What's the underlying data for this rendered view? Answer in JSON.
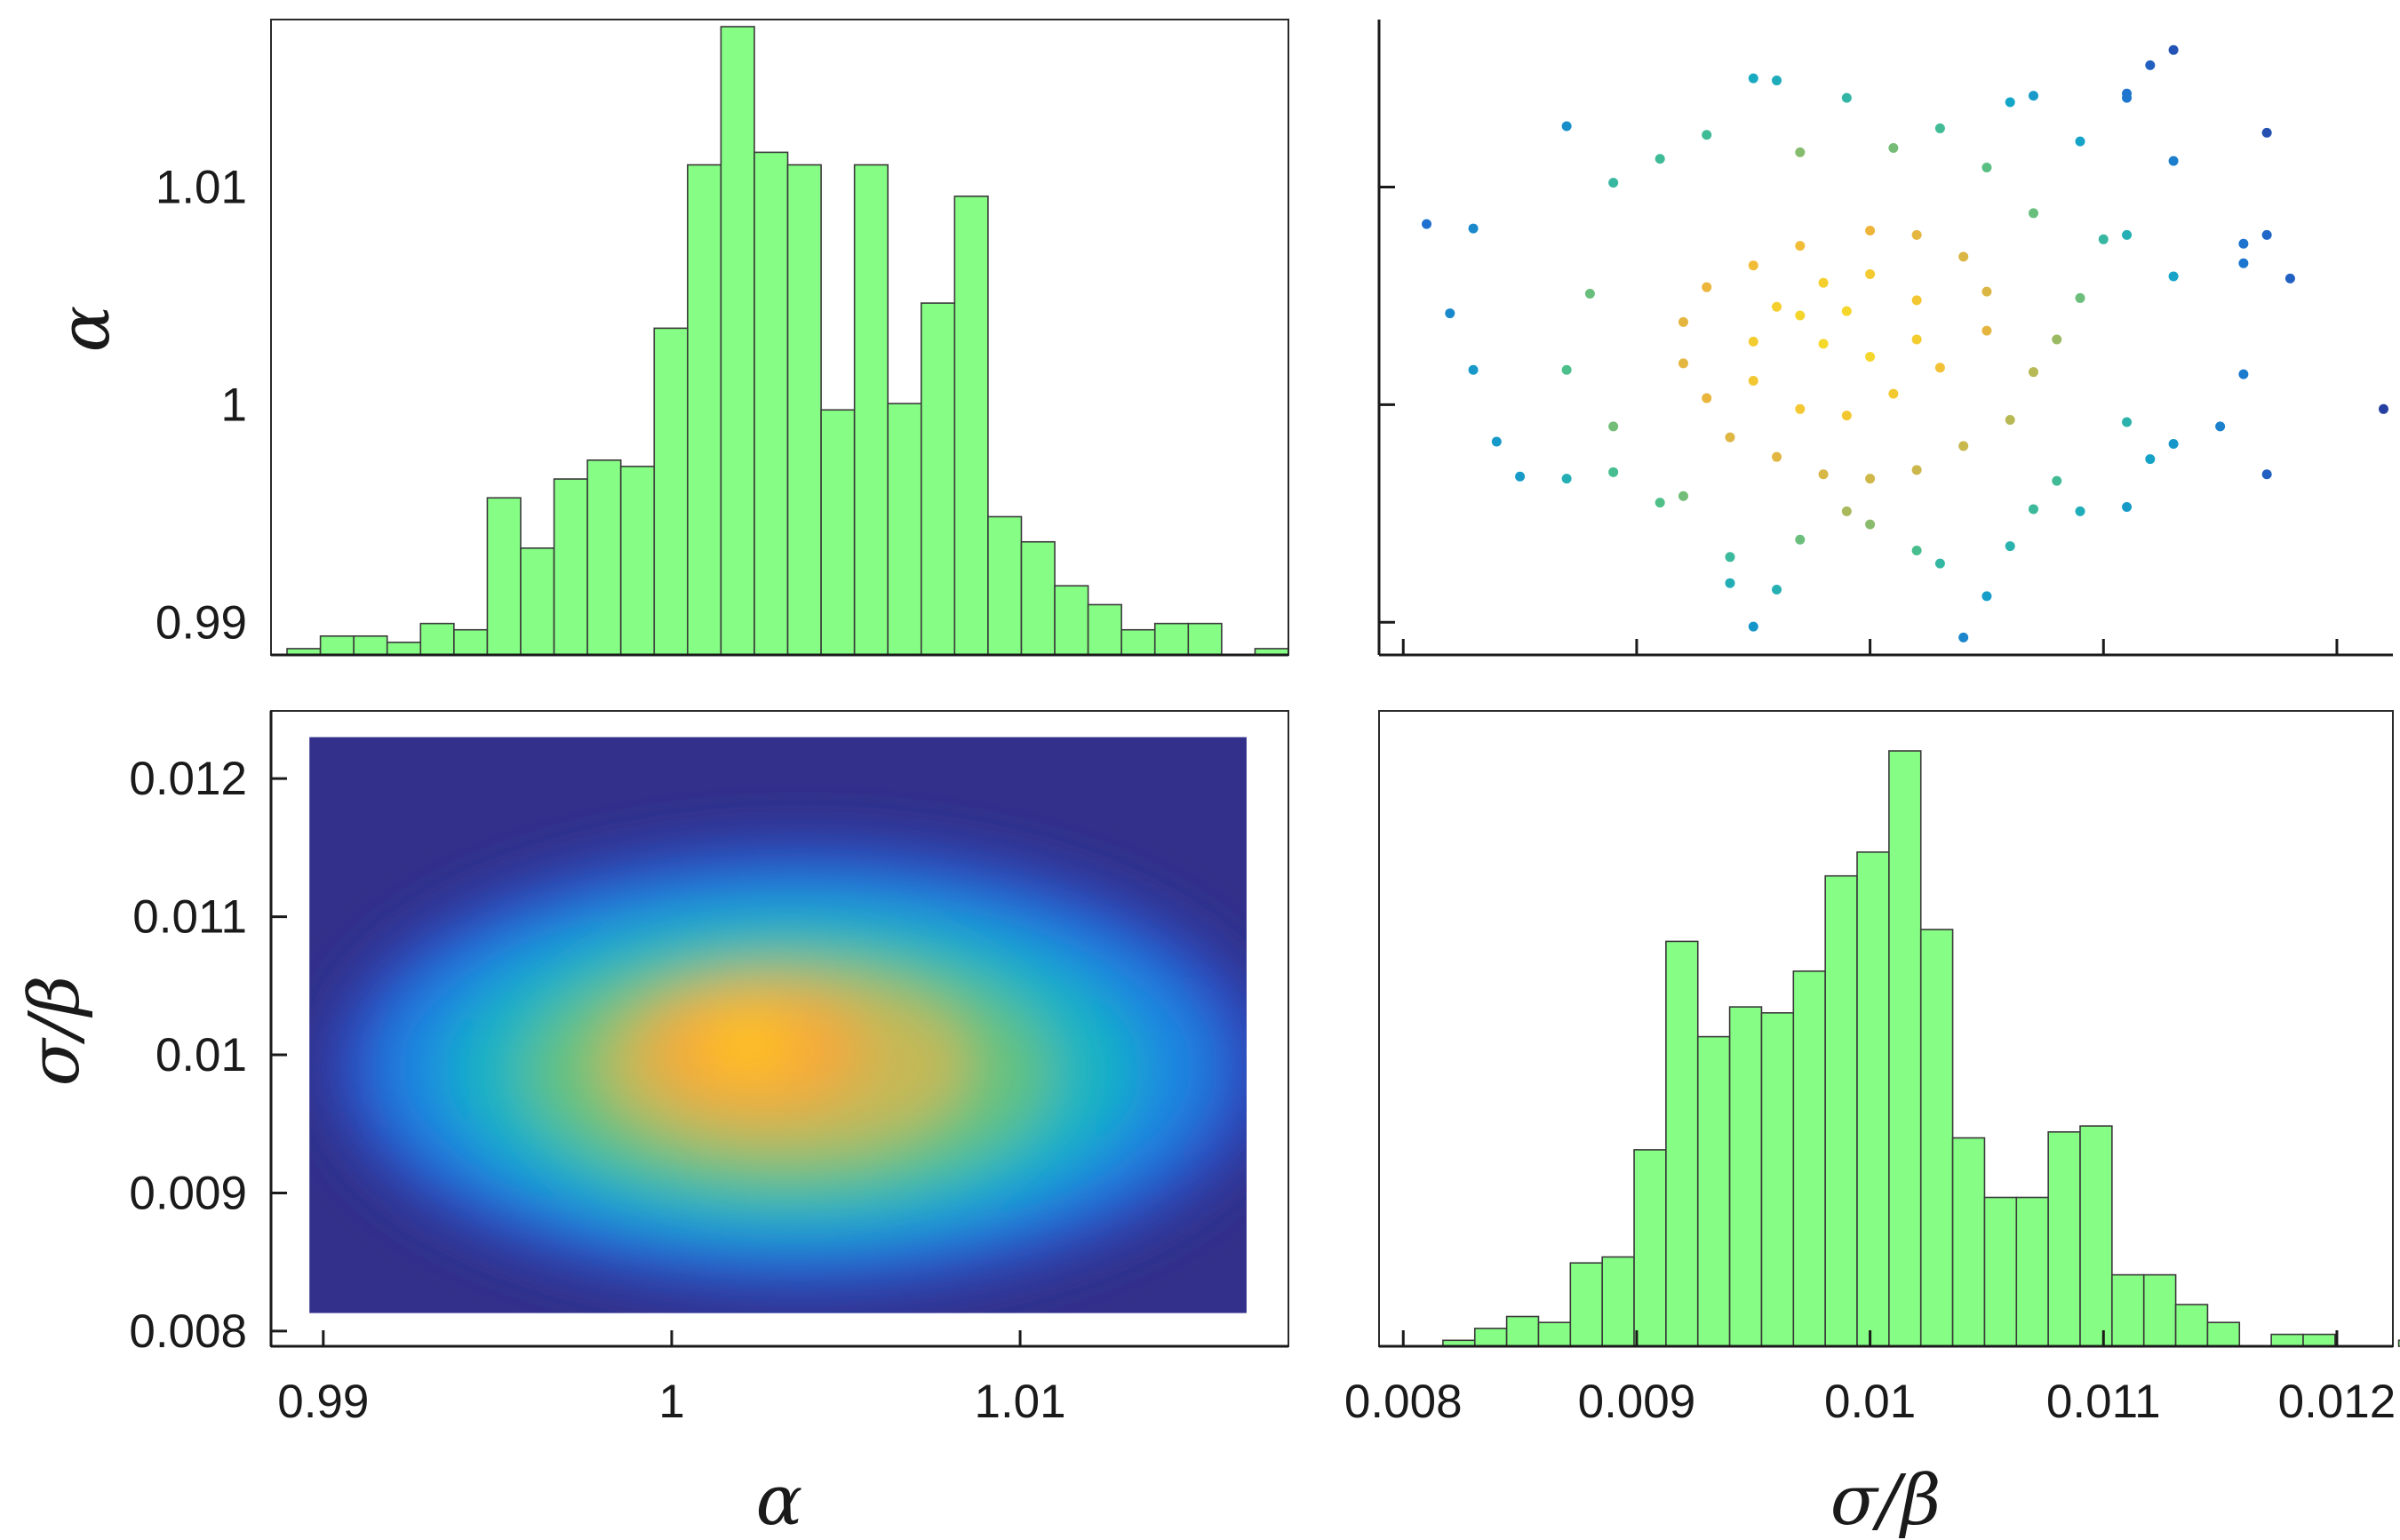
{
  "chart_data": [
    {
      "type": "bar",
      "panel": "top-left",
      "xlim": [
        0.9885,
        1.0177
      ],
      "ylim_ticks": [
        "0.99",
        "1",
        "1.01"
      ],
      "ylabel": "α",
      "bin_edges_start": 0.98896,
      "bin_width": 0.000958,
      "counts": [
        1,
        3,
        3,
        2,
        5,
        4,
        25,
        17,
        28,
        31,
        30,
        52,
        78,
        100,
        80,
        78,
        39,
        78,
        40,
        56,
        73,
        22,
        18,
        11,
        8,
        4,
        5,
        5,
        0,
        1
      ],
      "y_tick_labels": [
        "0.99",
        "1",
        "1.01"
      ],
      "y_tick_values": [
        0.99,
        1.0,
        1.01
      ],
      "y_tick_range": [
        0.9888,
        1.0155
      ]
    },
    {
      "type": "scatter",
      "panel": "top-right",
      "xlim": [
        0.00798,
        0.01224
      ],
      "ylim": [
        0.9885,
        1.0177
      ],
      "x_ticks": [
        0.008,
        0.009,
        0.01,
        0.011,
        0.012
      ],
      "y_ticks": [
        0.99,
        1.0,
        1.01
      ],
      "colormap": [
        "#2a2a8c",
        "#1f6fd0",
        "#14a8c6",
        "#4cc08a",
        "#b3b957",
        "#f0b53a",
        "#f5d92a"
      ],
      "points": [
        [
          0.0113,
          1.0163
        ],
        [
          0.0112,
          1.0156
        ],
        [
          0.0111,
          1.0143
        ],
        [
          0.0106,
          1.0139
        ],
        [
          0.0107,
          1.0142
        ],
        [
          0.0117,
          1.0125
        ],
        [
          0.0109,
          1.0121
        ],
        [
          0.0116,
          1.0065
        ],
        [
          0.0122,
          0.9998
        ],
        [
          0.0113,
          1.0112
        ],
        [
          0.0111,
          1.0141
        ],
        [
          0.0099,
          1.0141
        ],
        [
          0.0096,
          1.0149
        ],
        [
          0.0095,
          1.015
        ],
        [
          0.0087,
          1.0128
        ],
        [
          0.0081,
          1.0083
        ],
        [
          0.0083,
          1.0081
        ],
        [
          0.0082,
          1.0042
        ],
        [
          0.0083,
          1.0016
        ],
        [
          0.0084,
          0.9983
        ],
        [
          0.0085,
          0.9967
        ],
        [
          0.0087,
          0.9966
        ],
        [
          0.0092,
          0.9958
        ],
        [
          0.0094,
          0.993
        ],
        [
          0.0096,
          0.9915
        ],
        [
          0.0094,
          0.9918
        ],
        [
          0.0095,
          0.9898
        ],
        [
          0.0104,
          0.9893
        ],
        [
          0.0105,
          0.9912
        ],
        [
          0.0109,
          0.9951
        ],
        [
          0.0111,
          0.9953
        ],
        [
          0.0113,
          0.9982
        ],
        [
          0.0115,
          0.999
        ],
        [
          0.0113,
          1.0059
        ],
        [
          0.0111,
          1.0078
        ],
        [
          0.0116,
          1.0074
        ],
        [
          0.0117,
          1.0078
        ],
        [
          0.0118,
          1.0058
        ],
        [
          0.0116,
          1.0014
        ],
        [
          0.0117,
          0.9968
        ],
        [
          0.0112,
          0.9975
        ],
        [
          0.0111,
          0.9992
        ],
        [
          0.0108,
          0.9965
        ],
        [
          0.0107,
          0.9952
        ],
        [
          0.0106,
          0.9935
        ],
        [
          0.0103,
          0.9927
        ],
        [
          0.0102,
          0.9933
        ],
        [
          0.01,
          0.9945
        ],
        [
          0.0099,
          0.9951
        ],
        [
          0.0097,
          0.9938
        ],
        [
          0.0091,
          0.9955
        ],
        [
          0.0089,
          0.9969
        ],
        [
          0.0089,
          0.999
        ],
        [
          0.0087,
          1.0016
        ],
        [
          0.0088,
          1.0051
        ],
        [
          0.0089,
          1.0102
        ],
        [
          0.0091,
          1.0113
        ],
        [
          0.0093,
          1.0124
        ],
        [
          0.0097,
          1.0116
        ],
        [
          0.0101,
          1.0118
        ],
        [
          0.0103,
          1.0127
        ],
        [
          0.0105,
          1.0109
        ],
        [
          0.0107,
          1.0088
        ],
        [
          0.011,
          1.0076
        ],
        [
          0.0109,
          1.0049
        ],
        [
          0.0108,
          1.003
        ],
        [
          0.0107,
          1.0015
        ],
        [
          0.0106,
          0.9993
        ],
        [
          0.0104,
          0.9981
        ],
        [
          0.0102,
          0.997
        ],
        [
          0.01,
          0.9966
        ],
        [
          0.0098,
          0.9968
        ],
        [
          0.0096,
          0.9976
        ],
        [
          0.0094,
          0.9985
        ],
        [
          0.0093,
          1.0003
        ],
        [
          0.0092,
          1.0019
        ],
        [
          0.0092,
          1.0038
        ],
        [
          0.0093,
          1.0054
        ],
        [
          0.0095,
          1.0064
        ],
        [
          0.0097,
          1.0073
        ],
        [
          0.01,
          1.008
        ],
        [
          0.0102,
          1.0078
        ],
        [
          0.0104,
          1.0068
        ],
        [
          0.0105,
          1.0052
        ],
        [
          0.0105,
          1.0034
        ],
        [
          0.0103,
          1.0017
        ],
        [
          0.0101,
          1.0005
        ],
        [
          0.0099,
          0.9995
        ],
        [
          0.0097,
          0.9998
        ],
        [
          0.0095,
          1.0011
        ],
        [
          0.0095,
          1.0029
        ],
        [
          0.0096,
          1.0045
        ],
        [
          0.0098,
          1.0056
        ],
        [
          0.01,
          1.006
        ],
        [
          0.0102,
          1.0048
        ],
        [
          0.0102,
          1.003
        ],
        [
          0.01,
          1.0022
        ],
        [
          0.0098,
          1.0028
        ],
        [
          0.0097,
          1.0041
        ],
        [
          0.0099,
          1.0043
        ]
      ]
    },
    {
      "type": "heatmap",
      "panel": "bottom-left",
      "xlim": [
        0.9885,
        1.0177
      ],
      "ylim": [
        0.00789,
        0.01249
      ],
      "ylabel": "σ/β",
      "xlabel": "α",
      "x_ticks": [
        0.99,
        1.0,
        1.01
      ],
      "x_tick_labels": [
        "0.99",
        "1",
        "1.01"
      ],
      "y_ticks": [
        0.008,
        0.009,
        0.01,
        0.011,
        0.012
      ],
      "y_tick_labels": [
        "0.008",
        "0.009",
        "0.01",
        "0.011",
        "0.012"
      ],
      "image_extent_x": [
        0.9896,
        1.0165
      ],
      "image_extent_y": [
        0.00813,
        0.0123
      ],
      "peak": [
        1.0022,
        0.01007
      ],
      "colormap": [
        "#32308a",
        "#2c4fc8",
        "#1d86e2",
        "#12b3c4",
        "#62c27f",
        "#c6b855",
        "#f5a83a",
        "#ffc21e"
      ]
    },
    {
      "type": "bar",
      "panel": "bottom-right",
      "xlim": [
        0.00798,
        0.01224
      ],
      "xlabel": "σ/β",
      "x_ticks": [
        0.008,
        0.009,
        0.01,
        0.011,
        0.012
      ],
      "x_tick_labels": [
        "0.008",
        "0.009",
        "0.01",
        "0.011",
        "0.012"
      ],
      "bin_edges_start": 0.00817,
      "bin_width": 0.0001365,
      "counts": [
        1,
        3,
        5,
        4,
        14,
        15,
        33,
        68,
        52,
        57,
        56,
        63,
        79,
        83,
        100,
        70,
        35,
        25,
        25,
        36,
        37,
        12,
        12,
        7,
        4,
        0,
        2,
        2,
        0,
        0,
        1
      ]
    }
  ]
}
